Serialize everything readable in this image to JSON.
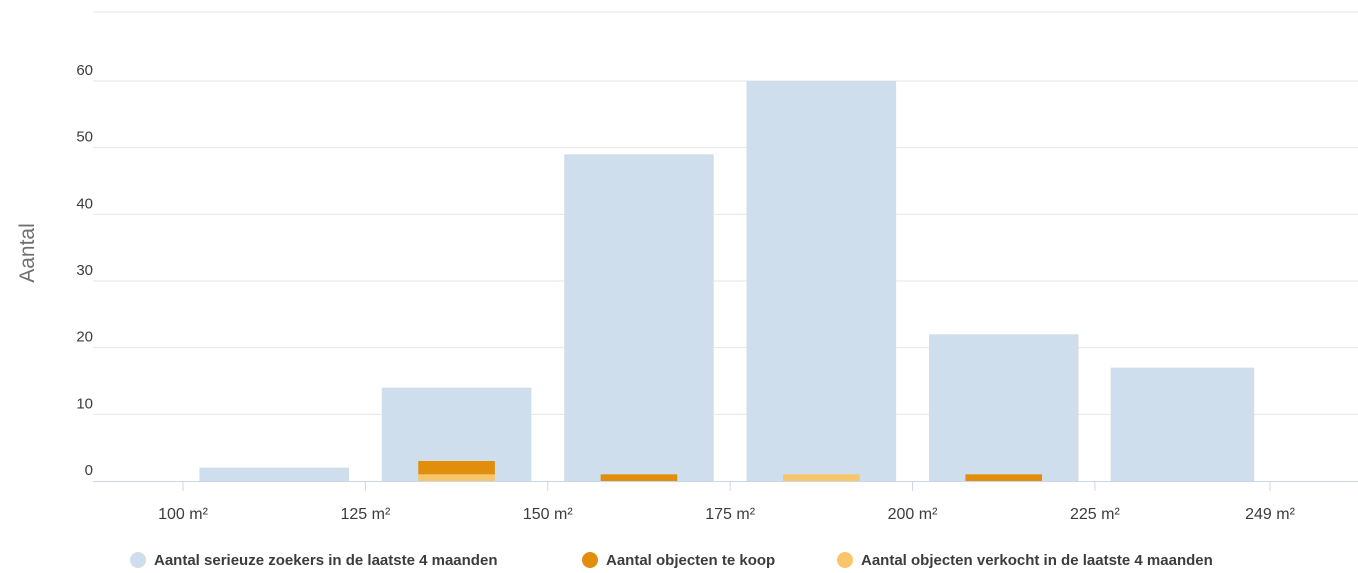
{
  "chart_data": {
    "type": "bar",
    "title": "",
    "xlabel": "",
    "ylabel": "Aantal",
    "ylim": [
      0,
      60
    ],
    "y_ticks": [
      "0",
      "10",
      "20",
      "30",
      "40",
      "50",
      "60"
    ],
    "x_tick_labels": [
      "100 m²",
      "125 m²",
      "150 m²",
      "175 m²",
      "200 m²",
      "225 m²",
      "249 m²"
    ],
    "grid": true,
    "legend_position": "bottom",
    "bins": [
      {
        "from": 100,
        "to": 125
      },
      {
        "from": 125,
        "to": 150
      },
      {
        "from": 150,
        "to": 175
      },
      {
        "from": 175,
        "to": 200
      },
      {
        "from": 200,
        "to": 225
      },
      {
        "from": 225,
        "to": 249
      }
    ],
    "series": [
      {
        "name": "Aantal serieuze zoekers in de laatste 4 maanden",
        "color": "#cfdeec",
        "values": [
          2,
          14,
          49,
          60,
          22,
          17
        ]
      },
      {
        "name": "Aantal objecten te koop",
        "color": "#e08e0b",
        "values": [
          0,
          2,
          1,
          0,
          1,
          0
        ]
      },
      {
        "name": "Aantal objecten verkocht in de laatste 4 maanden",
        "color": "#f7c66b",
        "values": [
          0,
          1,
          0,
          1,
          0,
          0
        ]
      }
    ]
  }
}
